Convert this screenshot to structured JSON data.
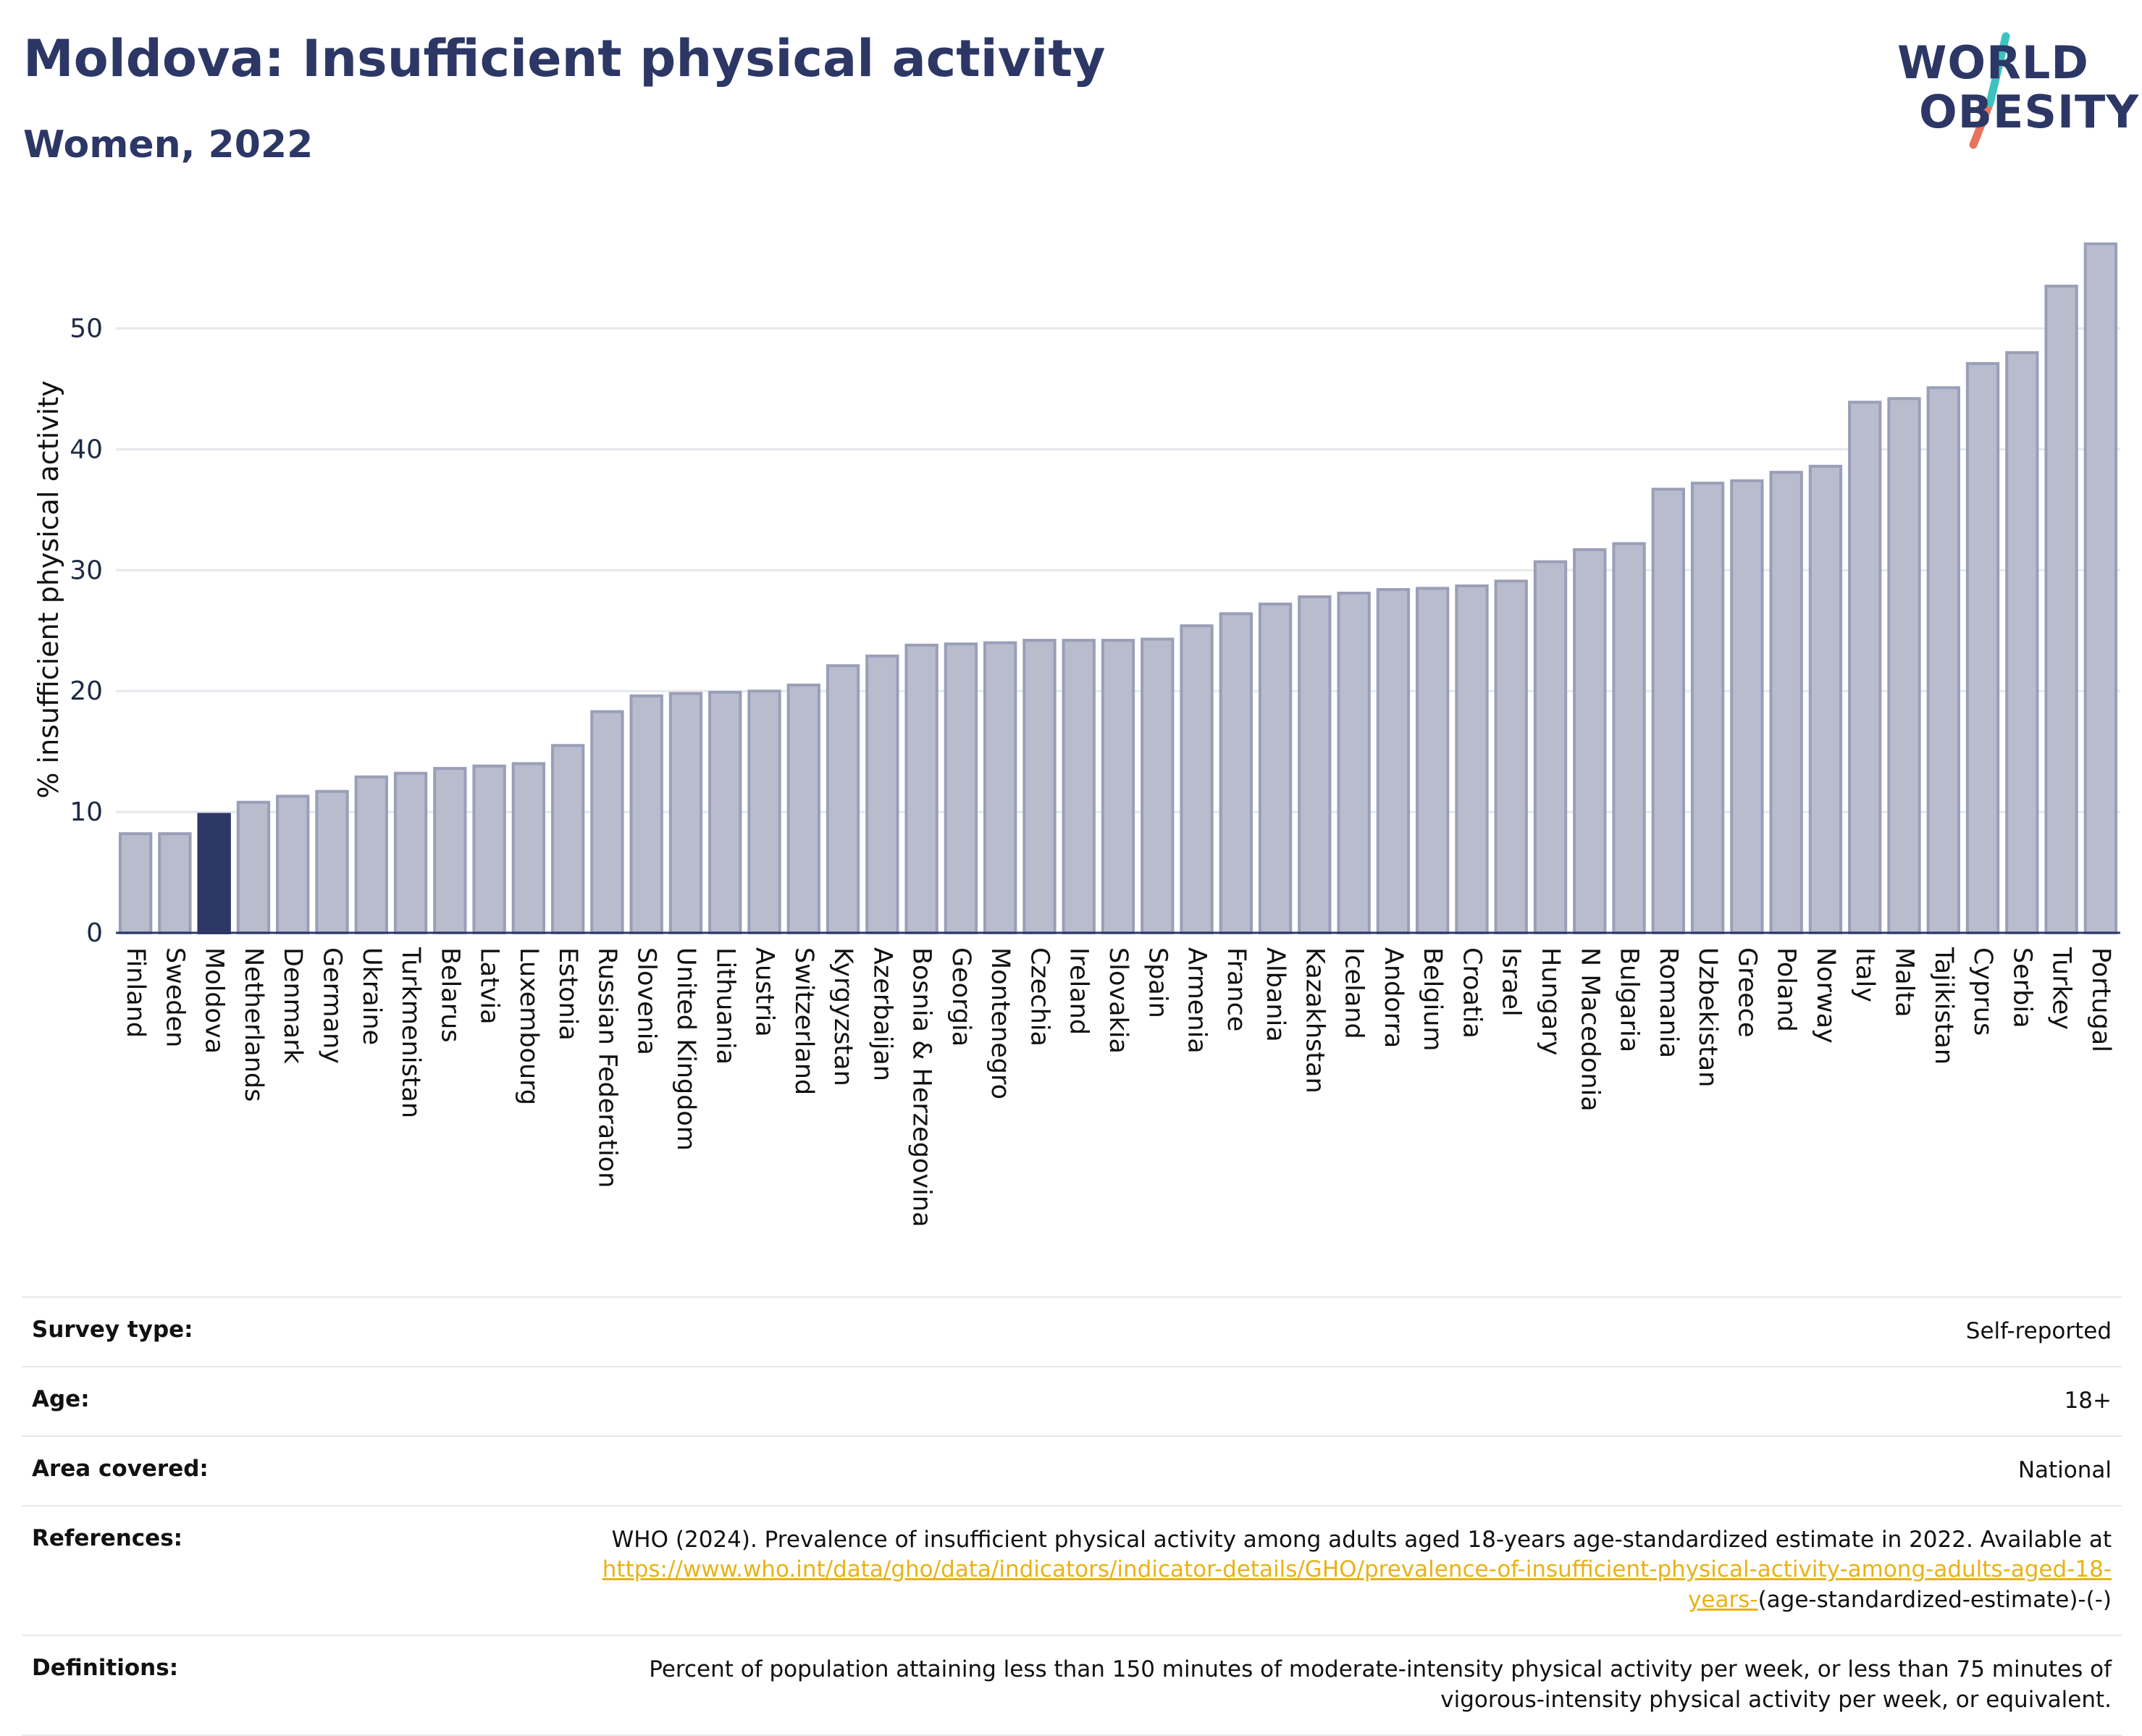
{
  "header": {
    "title": "Moldova: Insufficient physical activity",
    "subtitle": "Women, 2022",
    "logo_line1": "WORLD",
    "logo_line2": "OBESITY"
  },
  "colors": {
    "bar": "#b9bccd",
    "bar_edge": "#9a9fb8",
    "highlight": "#2c3766",
    "grid": "#e6e8ee",
    "text": "#1f2a44",
    "logo_slash_teal": "#3cc3c0",
    "logo_slash_coral": "#e8735f",
    "link": "#e8b217"
  },
  "chart_data": {
    "type": "bar",
    "ylabel": "% insufficient physical activity",
    "xlabel": "",
    "ylim": [
      0,
      58
    ],
    "yticks": [
      0,
      10,
      20,
      30,
      40,
      50
    ],
    "grid": true,
    "highlight_category": "Moldova",
    "categories": [
      "Finland",
      "Sweden",
      "Moldova",
      "Netherlands",
      "Denmark",
      "Germany",
      "Ukraine",
      "Turkmenistan",
      "Belarus",
      "Latvia",
      "Luxembourg",
      "Estonia",
      "Russian Federation",
      "Slovenia",
      "United Kingdom",
      "Lithuania",
      "Austria",
      "Switzerland",
      "Kyrgyzstan",
      "Azerbaijan",
      "Bosnia & Herzegovina",
      "Georgia",
      "Montenegro",
      "Czechia",
      "Ireland",
      "Slovakia",
      "Spain",
      "Armenia",
      "France",
      "Albania",
      "Kazakhstan",
      "Iceland",
      "Andorra",
      "Belgium",
      "Croatia",
      "Israel",
      "Hungary",
      "N Macedonia",
      "Bulgaria",
      "Romania",
      "Uzbekistan",
      "Greece",
      "Poland",
      "Norway",
      "Italy",
      "Malta",
      "Tajikistan",
      "Cyprus",
      "Serbia",
      "Turkey",
      "Portugal"
    ],
    "values": [
      8.2,
      8.2,
      9.8,
      10.8,
      11.3,
      11.7,
      12.9,
      13.2,
      13.6,
      13.8,
      14.0,
      15.5,
      18.3,
      19.6,
      19.8,
      19.9,
      20.0,
      20.5,
      22.1,
      22.9,
      23.8,
      23.9,
      24.0,
      24.2,
      24.2,
      24.2,
      24.3,
      25.4,
      26.4,
      27.2,
      27.8,
      28.1,
      28.4,
      28.5,
      28.7,
      29.1,
      30.7,
      31.7,
      32.2,
      36.7,
      37.2,
      37.4,
      38.1,
      38.6,
      43.9,
      44.2,
      45.1,
      47.1,
      48.0,
      53.5,
      57.0
    ]
  },
  "meta": {
    "survey_type_label": "Survey type:",
    "survey_type_value": "Self-reported",
    "age_label": "Age:",
    "age_value": "18+",
    "area_label": "Area covered:",
    "area_value": "National",
    "references_label": "References:",
    "references_text": "WHO (2024). Prevalence of insufficient physical activity among adults aged 18-years age-standardized estimate in 2022. Available at",
    "references_link": "https://www.who.int/data/gho/data/indicators/indicator-details/GHO/prevalence-of-insufficient-physical-activity-among-adults-aged-18-years-",
    "references_suffix": "(age-standardized-estimate)-(-)",
    "definitions_label": "Definitions:",
    "definitions_text": "Percent of population attaining less than 150 minutes of moderate-intensity physical activity per week, or less than 75 minutes of vigorous-intensity physical activity per week, or equivalent."
  }
}
